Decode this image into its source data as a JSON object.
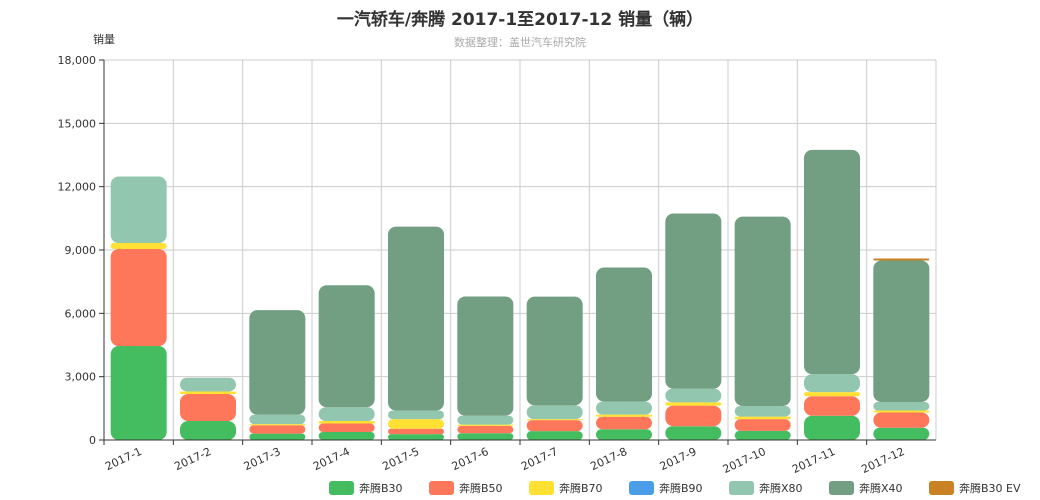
{
  "chart_data": {
    "type": "bar",
    "stacked": true,
    "title": "一汽轿车/奔腾 2017-1至2017-12 销量（辆）",
    "subtitle": "数据整理：盖世汽车研究院",
    "ylabel": "销量",
    "xlabel": "",
    "ylim": [
      0,
      18000
    ],
    "yticks": [
      0,
      3000,
      6000,
      9000,
      12000,
      15000,
      18000
    ],
    "ytick_labels": [
      "0",
      "3,000",
      "6,000",
      "9,000",
      "12,000",
      "15,000",
      "18,000"
    ],
    "grid": true,
    "legend_position": "bottom-right",
    "categories": [
      "2017-1",
      "2017-2",
      "2017-3",
      "2017-4",
      "2017-5",
      "2017-6",
      "2017-7",
      "2017-8",
      "2017-9",
      "2017-10",
      "2017-11",
      "2017-12"
    ],
    "series": [
      {
        "name": "奔腾B30",
        "color": "#44bd60",
        "values": [
          4450,
          900,
          300,
          380,
          280,
          320,
          420,
          510,
          650,
          430,
          1150,
          580
        ]
      },
      {
        "name": "奔腾B50",
        "color": "#ff775a",
        "values": [
          4600,
          1280,
          400,
          400,
          250,
          350,
          520,
          590,
          980,
          560,
          920,
          720
        ]
      },
      {
        "name": "奔腾B70",
        "color": "#ffe033",
        "values": [
          280,
          120,
          50,
          120,
          460,
          60,
          50,
          100,
          150,
          120,
          200,
          100
        ]
      },
      {
        "name": "奔腾B90",
        "color": "#4a9ee8",
        "values": [
          0,
          0,
          0,
          0,
          0,
          0,
          0,
          0,
          0,
          0,
          0,
          0
        ]
      },
      {
        "name": "奔腾X80",
        "color": "#93c6ae",
        "values": [
          3150,
          650,
          450,
          650,
          400,
          420,
          650,
          620,
          650,
          500,
          850,
          400
        ]
      },
      {
        "name": "奔腾X40",
        "color": "#729e81",
        "values": [
          0,
          0,
          4950,
          5780,
          8720,
          5650,
          5150,
          6350,
          8300,
          8970,
          10620,
          6700
        ]
      },
      {
        "name": "奔腾B30 EV",
        "color": "#c98123",
        "values": [
          0,
          0,
          0,
          0,
          0,
          0,
          0,
          0,
          0,
          0,
          0,
          100
        ]
      }
    ]
  }
}
